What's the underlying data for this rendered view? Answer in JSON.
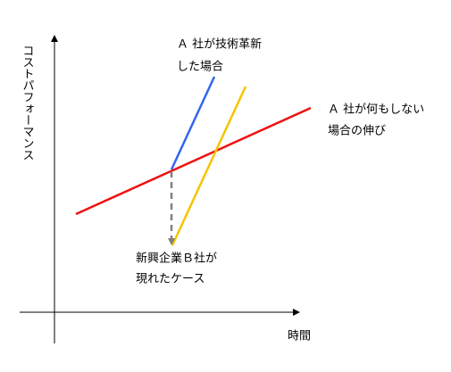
{
  "axes": {
    "y_label": "コストパフォーマンス",
    "x_label": "時間"
  },
  "annotations": [
    {
      "lines": [
        "Ａ 社が技術革新",
        "した場合"
      ]
    },
    {
      "lines": [
        "Ａ 社が何もしない",
        "場合の伸び"
      ]
    },
    {
      "lines": [
        "新興企業Ｂ社が",
        "現れたケース"
      ]
    }
  ]
}
